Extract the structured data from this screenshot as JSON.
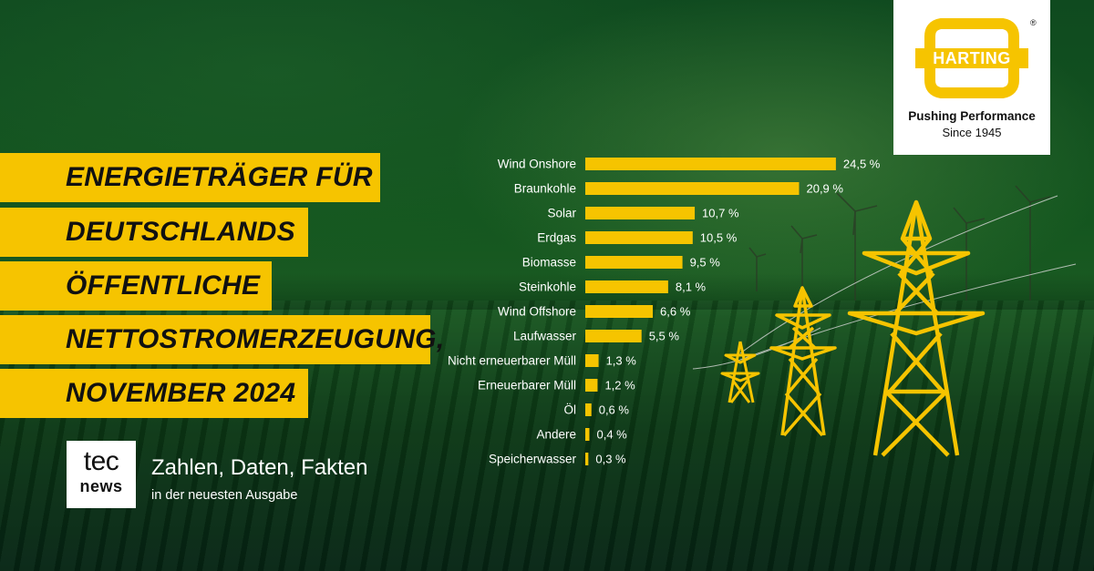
{
  "title_lines": [
    "ENERGIETRÄGER FÜR",
    "DEUTSCHLANDS",
    "ÖFFENTLICHE",
    "NETTOSTROMERZEUGUNG,",
    "NOVEMBER 2024"
  ],
  "logo": {
    "wordmark": "HARTING",
    "registered": "®",
    "tagline": "Pushing Performance",
    "since": "Since 1945"
  },
  "tecnews": {
    "logo_top": "tec",
    "logo_bottom": "news",
    "headline": "Zahlen, Daten, Fakten",
    "subline": "in der neuesten Ausgabe"
  },
  "chart_data": {
    "type": "bar",
    "orientation": "horizontal",
    "categories": [
      "Wind Onshore",
      "Braunkohle",
      "Solar",
      "Erdgas",
      "Biomasse",
      "Steinkohle",
      "Wind Offshore",
      "Laufwasser",
      "Nicht erneuerbarer Müll",
      "Erneuerbarer Müll",
      "Öl",
      "Andere",
      "Speicherwasser"
    ],
    "values": [
      24.5,
      20.9,
      10.7,
      10.5,
      9.5,
      8.1,
      6.6,
      5.5,
      1.3,
      1.2,
      0.6,
      0.4,
      0.3
    ],
    "value_labels": [
      "24,5 %",
      "20,9 %",
      "10,7 %",
      "10,5 %",
      "9,5 %",
      "8,1 %",
      "6,6 %",
      "5,5 %",
      "1,3 %",
      "1,2 %",
      "0,6 %",
      "0,4 %",
      "0,3 %"
    ],
    "bar_color": "#f6c400",
    "grid": false,
    "legend": "none"
  },
  "colors": {
    "accent_yellow": "#f6c400",
    "background_green": "#14561f"
  }
}
